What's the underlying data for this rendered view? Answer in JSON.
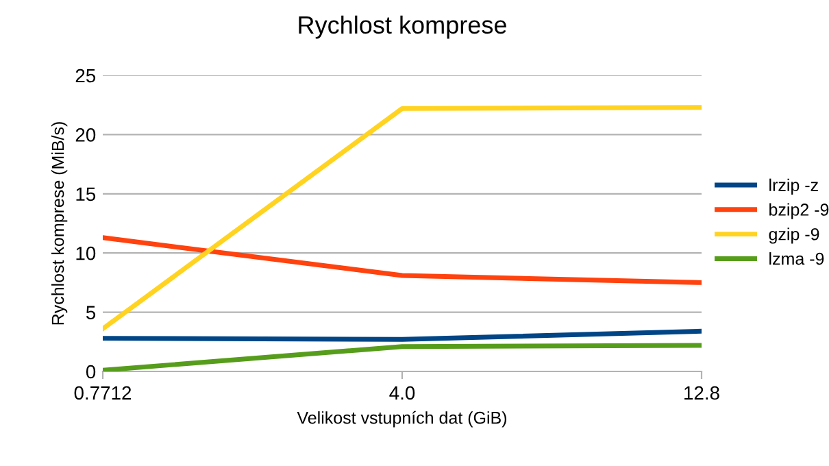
{
  "chart_data": {
    "type": "line",
    "title": "Rychlost komprese",
    "xlabel": "Velikost vstupních dat (GiB)",
    "ylabel": "Rychlost komprese (MiB/s)",
    "categories": [
      "0.7712",
      "4.0",
      "12.8"
    ],
    "series": [
      {
        "name": "lrzip -z",
        "color": "#004586",
        "values": [
          2.8,
          2.7,
          3.4
        ]
      },
      {
        "name": "bzip2 -9",
        "color": "#ff420e",
        "values": [
          11.3,
          8.1,
          7.5
        ]
      },
      {
        "name": "gzip -9",
        "color": "#ffd320",
        "values": [
          3.6,
          22.2,
          22.3
        ]
      },
      {
        "name": "lzma -9",
        "color": "#579d1c",
        "values": [
          0.1,
          2.1,
          2.2
        ]
      }
    ],
    "ylim": [
      0,
      25
    ],
    "yticks": [
      0,
      5,
      10,
      15,
      20,
      25
    ],
    "grid": "y",
    "legend": "right",
    "marker": "none",
    "line_style": "solid"
  }
}
